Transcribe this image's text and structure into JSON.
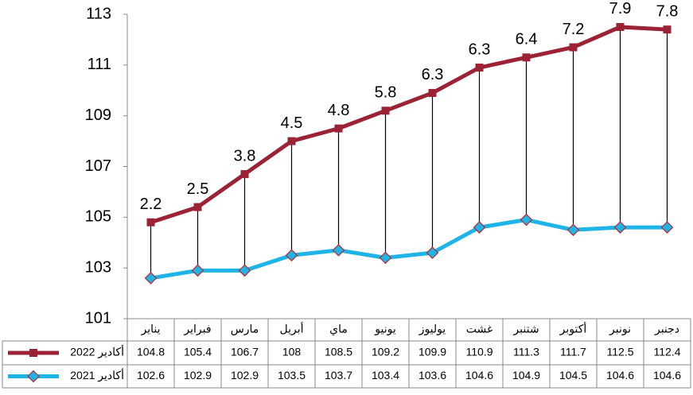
{
  "chart_data": {
    "type": "line",
    "categories": [
      "يناير",
      "فبراير",
      "مارس",
      "أبريل",
      "ماي",
      "يونيو",
      "يوليوز",
      "غشت",
      "شتنبر",
      "أكتوبر",
      "نونبر",
      "دجنبر"
    ],
    "series": [
      {
        "name": "أكادير 2022",
        "color": "#9b2335",
        "marker": "square",
        "values": [
          104.8,
          105.4,
          106.7,
          108,
          108.5,
          109.2,
          109.9,
          110.9,
          111.3,
          111.7,
          112.5,
          112.4
        ]
      },
      {
        "name": "أكادير 2021",
        "color": "#1fb4e8",
        "marker": "diamond",
        "values": [
          102.6,
          102.9,
          102.9,
          103.5,
          103.7,
          103.4,
          103.6,
          104.6,
          104.9,
          104.5,
          104.6,
          104.6
        ]
      }
    ],
    "annotations": [
      2.2,
      2.5,
      3.8,
      4.5,
      4.8,
      5.8,
      6.3,
      6.3,
      6.4,
      7.2,
      7.9,
      7.8
    ],
    "ylim": [
      101,
      113
    ],
    "yticks": [
      101,
      103,
      105,
      107,
      109,
      111,
      113
    ],
    "grid": false
  }
}
